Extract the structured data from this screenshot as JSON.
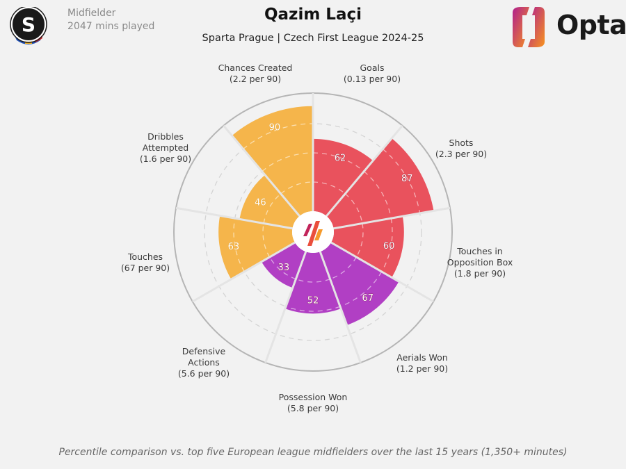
{
  "header": {
    "position": "Midfielder",
    "minutes": "2047 mins played",
    "player_name": "Qazim Laçi",
    "subtitle": "Sparta Prague | Czech First League 2024-25",
    "brand": "Opta",
    "club_badge_letter": "S"
  },
  "footnote": "Percentile comparison vs. top five European league midfielders over the last 15 years (1,350+ minutes)",
  "colors": {
    "background": "#f2f2f2",
    "attacking": "#e9525d",
    "possession": "#f5b54b",
    "defending": "#b13fc4",
    "grid": "#d4d4d4",
    "outer_ring": "#b5b5b5"
  },
  "chart_data": {
    "type": "pizza",
    "range": [
      0,
      100
    ],
    "rings": [
      25,
      50,
      75
    ],
    "categories": [
      {
        "name": "Goals",
        "per90": "(0.13 per 90)",
        "value": 62,
        "group": "attacking"
      },
      {
        "name": "Shots",
        "per90": "(2.3 per 90)",
        "value": 87,
        "group": "attacking"
      },
      {
        "name": "Touches in Opposition Box",
        "per90": "(1.8 per 90)",
        "value": 60,
        "group": "attacking"
      },
      {
        "name": "Aerials Won",
        "per90": "(1.2 per 90)",
        "value": 67,
        "group": "defending"
      },
      {
        "name": "Possession Won",
        "per90": "(5.8 per 90)",
        "value": 52,
        "group": "defending"
      },
      {
        "name": "Defensive Actions",
        "per90": "(5.6 per 90)",
        "value": 33,
        "group": "defending"
      },
      {
        "name": "Touches",
        "per90": "(67 per 90)",
        "value": 63,
        "group": "possession"
      },
      {
        "name": "Dribbles Attempted",
        "per90": "(1.6 per 90)",
        "value": 46,
        "group": "possession"
      },
      {
        "name": "Chances Created",
        "per90": "(2.2 per 90)",
        "value": 90,
        "group": "possession"
      }
    ]
  }
}
